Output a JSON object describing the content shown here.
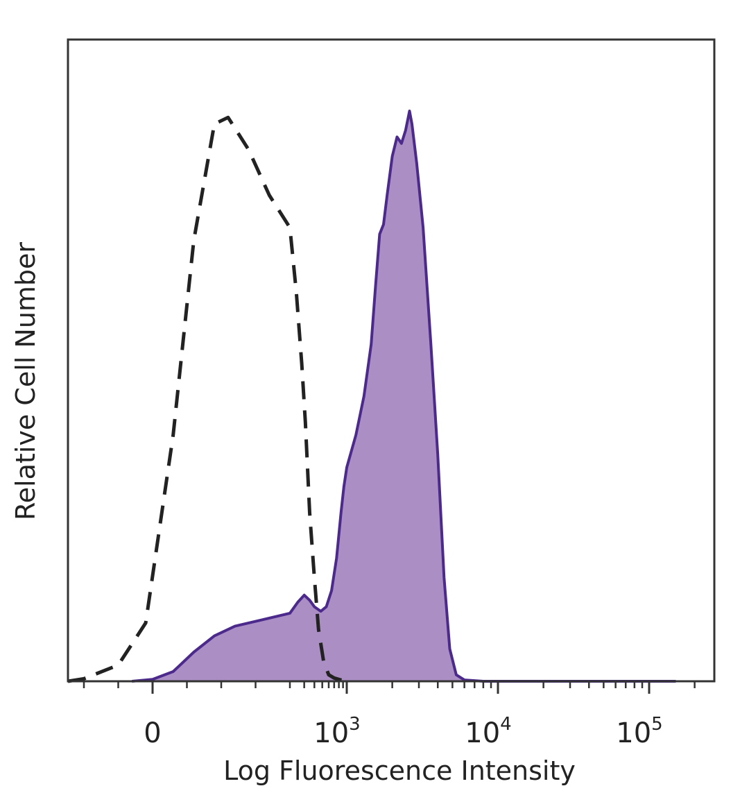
{
  "chart_data": {
    "type": "area",
    "xlabel": "Log Fluorescence Intensity",
    "ylabel": "Relative Cell Number",
    "x_scale": "biexponential",
    "xlim": [
      -200,
      200000
    ],
    "ylim": [
      0,
      100
    ],
    "grid": false,
    "x_ticks": [
      {
        "value": 0,
        "base": "0",
        "exp": ""
      },
      {
        "value": 1000,
        "base": "10",
        "exp": "3"
      },
      {
        "value": 10000,
        "base": "10",
        "exp": "4"
      },
      {
        "value": 100000,
        "base": "10",
        "exp": "5"
      }
    ],
    "series": [
      {
        "style": "filled",
        "fill_color": "#ab8fc4",
        "line_color": "#4b2a8c",
        "points": [
          [
            -30,
            0
          ],
          [
            0,
            0.3
          ],
          [
            30,
            1.5
          ],
          [
            60,
            4.5
          ],
          [
            90,
            7
          ],
          [
            120,
            8.5
          ],
          [
            160,
            9.5
          ],
          [
            200,
            10.5
          ],
          [
            250,
            12.2
          ],
          [
            300,
            13.3
          ],
          [
            350,
            12.5
          ],
          [
            400,
            11.5
          ],
          [
            480,
            10.8
          ],
          [
            560,
            11.5
          ],
          [
            650,
            14
          ],
          [
            750,
            19
          ],
          [
            850,
            26
          ],
          [
            920,
            30
          ],
          [
            1000,
            33
          ],
          [
            1150,
            38
          ],
          [
            1300,
            44
          ],
          [
            1450,
            52
          ],
          [
            1550,
            61
          ],
          [
            1650,
            69
          ],
          [
            1750,
            70.5
          ],
          [
            1850,
            75
          ],
          [
            2000,
            81
          ],
          [
            2150,
            84
          ],
          [
            2300,
            83
          ],
          [
            2450,
            85
          ],
          [
            2600,
            88
          ],
          [
            2700,
            86
          ],
          [
            2900,
            80
          ],
          [
            3200,
            70
          ],
          [
            3600,
            52
          ],
          [
            4000,
            35
          ],
          [
            4400,
            16
          ],
          [
            4800,
            5
          ],
          [
            5300,
            1
          ],
          [
            6000,
            0.2
          ],
          [
            8000,
            0
          ],
          [
            150000,
            0
          ]
        ]
      },
      {
        "style": "dashed",
        "line_color": "#222222",
        "points": [
          [
            -150,
            0
          ],
          [
            -100,
            0.4
          ],
          [
            -50,
            2.5
          ],
          [
            -10,
            9
          ],
          [
            30,
            38
          ],
          [
            60,
            68
          ],
          [
            90,
            86
          ],
          [
            110,
            87
          ],
          [
            140,
            82
          ],
          [
            170,
            75
          ],
          [
            200,
            70
          ],
          [
            240,
            60
          ],
          [
            280,
            49
          ],
          [
            310,
            40
          ],
          [
            350,
            26
          ],
          [
            400,
            16
          ],
          [
            450,
            8
          ],
          [
            520,
            3
          ],
          [
            600,
            1
          ],
          [
            700,
            0.5
          ],
          [
            850,
            0.2
          ],
          [
            1000,
            0
          ]
        ]
      }
    ]
  }
}
